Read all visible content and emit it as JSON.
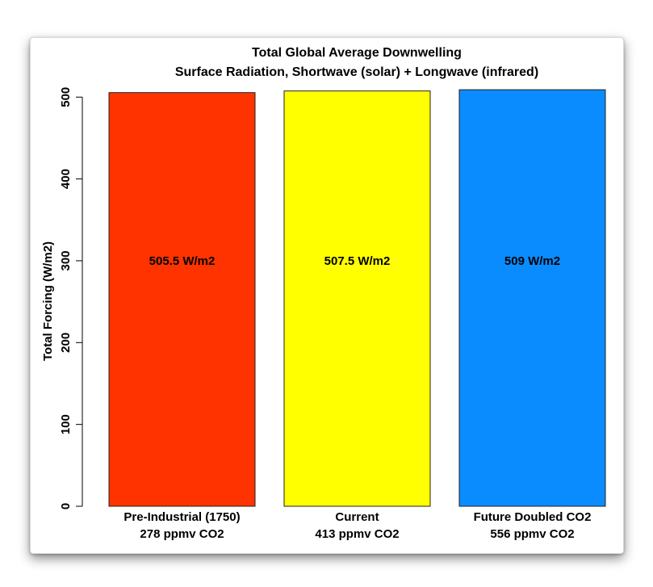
{
  "chart_data": {
    "type": "bar",
    "title": "Total Global Average Downwelling",
    "subtitle": "Surface Radiation, Shortwave (solar) + Longwave (infrared)",
    "xlabel": "",
    "ylabel": "Total Forcing (W/m2)",
    "ylim": [
      0,
      505
    ],
    "yticks": [
      "0",
      "100",
      "200",
      "300",
      "400",
      "500"
    ],
    "grid": false,
    "categories": [
      [
        "Pre-Industrial (1750)",
        "278 ppmv CO2"
      ],
      [
        "Current",
        "413 ppmv CO2"
      ],
      [
        "Future Doubled CO2",
        "556 ppmv CO2"
      ]
    ],
    "values": [
      505.5,
      507.5,
      509
    ],
    "data_labels": [
      "505.5 W/m2",
      "507.5 W/m2",
      "509 W/m2"
    ],
    "colors": [
      "#ff3300",
      "#ffff00",
      "#0a8cff"
    ]
  }
}
